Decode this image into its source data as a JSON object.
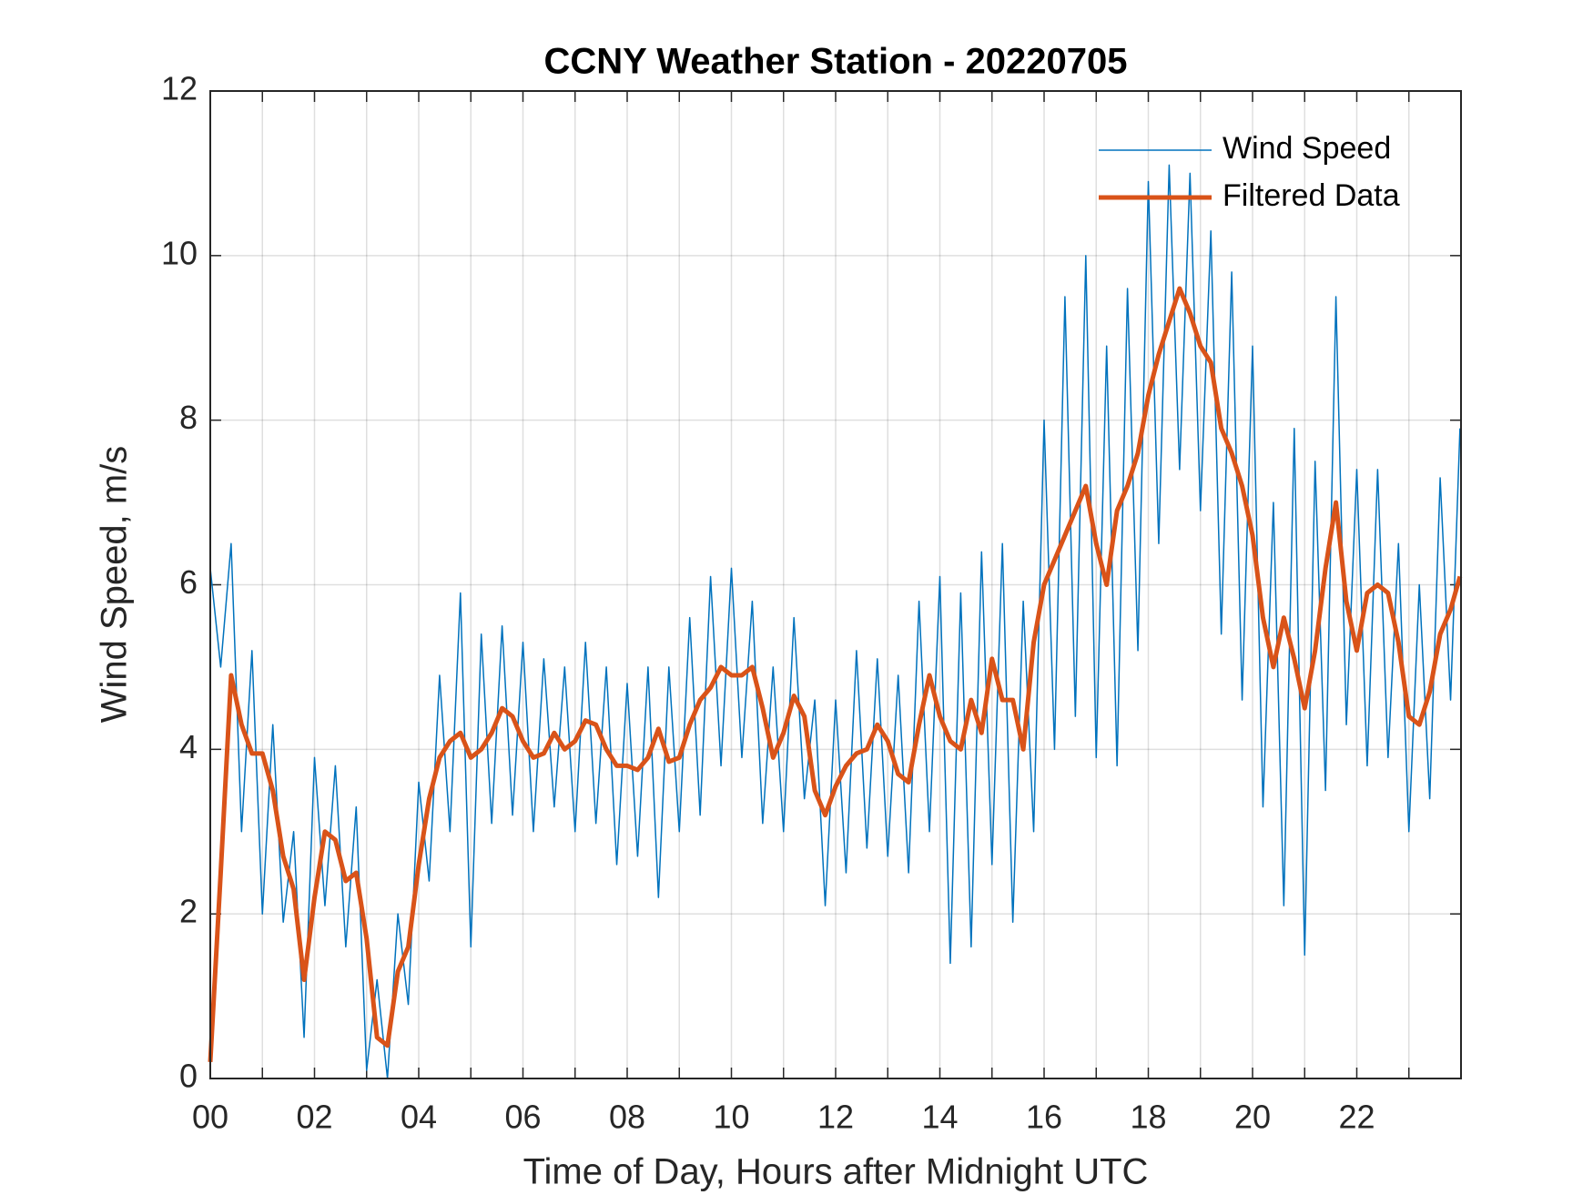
{
  "chart_data": {
    "type": "line",
    "title": "CCNY Weather Station - 20220705",
    "xlabel": "Time of Day, Hours after Midnight UTC",
    "ylabel": "Wind Speed, m/s",
    "x": [
      0,
      0.2,
      0.4,
      0.6,
      0.8,
      1.0,
      1.2,
      1.4,
      1.6,
      1.8,
      2.0,
      2.2,
      2.4,
      2.6,
      2.8,
      3.0,
      3.2,
      3.4,
      3.6,
      3.8,
      4.0,
      4.2,
      4.4,
      4.6,
      4.8,
      5.0,
      5.2,
      5.4,
      5.6,
      5.8,
      6.0,
      6.2,
      6.4,
      6.6,
      6.8,
      7.0,
      7.2,
      7.4,
      7.6,
      7.8,
      8.0,
      8.2,
      8.4,
      8.6,
      8.8,
      9.0,
      9.2,
      9.4,
      9.6,
      9.8,
      10.0,
      10.2,
      10.4,
      10.6,
      10.8,
      11.0,
      11.2,
      11.4,
      11.6,
      11.8,
      12.0,
      12.2,
      12.4,
      12.6,
      12.8,
      13.0,
      13.2,
      13.4,
      13.6,
      13.8,
      14.0,
      14.2,
      14.4,
      14.6,
      14.8,
      15.0,
      15.2,
      15.4,
      15.6,
      15.8,
      16.0,
      16.2,
      16.4,
      16.6,
      16.8,
      17.0,
      17.2,
      17.4,
      17.6,
      17.8,
      18.0,
      18.2,
      18.4,
      18.6,
      18.8,
      19.0,
      19.2,
      19.4,
      19.6,
      19.8,
      20.0,
      20.2,
      20.4,
      20.6,
      20.8,
      21.0,
      21.2,
      21.4,
      21.6,
      21.8,
      22.0,
      22.2,
      22.4,
      22.6,
      22.8,
      23.0,
      23.2,
      23.4,
      23.6,
      23.8,
      23.98
    ],
    "series": [
      {
        "name": "Wind Speed",
        "color": "#0072BD",
        "width": 1.5,
        "values": [
          6.2,
          5.0,
          6.5,
          3.0,
          5.2,
          2.0,
          4.3,
          1.9,
          3.0,
          0.5,
          3.9,
          2.1,
          3.8,
          1.6,
          3.3,
          0.1,
          1.2,
          0.0,
          2.0,
          0.9,
          3.6,
          2.4,
          4.9,
          3.0,
          5.9,
          1.6,
          5.4,
          3.1,
          5.5,
          3.2,
          5.3,
          3.0,
          5.1,
          3.3,
          5.0,
          3.0,
          5.3,
          3.1,
          5.0,
          2.6,
          4.8,
          2.7,
          5.0,
          2.2,
          5.0,
          3.0,
          5.6,
          3.2,
          6.1,
          3.8,
          6.2,
          3.9,
          5.8,
          3.1,
          5.0,
          3.0,
          5.6,
          3.4,
          4.6,
          2.1,
          4.6,
          2.5,
          5.2,
          2.8,
          5.1,
          2.7,
          4.9,
          2.5,
          5.8,
          3.0,
          6.1,
          1.4,
          5.9,
          1.6,
          6.4,
          2.6,
          6.5,
          1.9,
          5.8,
          3.0,
          8.0,
          4.0,
          9.5,
          4.4,
          10.0,
          3.9,
          8.9,
          3.8,
          9.6,
          5.2,
          10.9,
          6.5,
          11.1,
          7.4,
          11.0,
          6.9,
          10.3,
          5.4,
          9.8,
          4.6,
          8.9,
          3.3,
          7.0,
          2.1,
          7.9,
          1.5,
          7.5,
          3.5,
          9.5,
          4.3,
          7.4,
          3.8,
          7.4,
          3.9,
          6.5,
          3.0,
          6.0,
          3.4,
          7.3,
          4.6,
          7.9
        ]
      },
      {
        "name": "Filtered Data",
        "color": "#D95319",
        "width": 5,
        "values": [
          0.2,
          2.5,
          4.9,
          4.3,
          3.95,
          3.95,
          3.5,
          2.7,
          2.3,
          1.2,
          2.2,
          3.0,
          2.9,
          2.4,
          2.5,
          1.7,
          0.5,
          0.4,
          1.3,
          1.6,
          2.6,
          3.4,
          3.9,
          4.1,
          4.2,
          3.9,
          4.0,
          4.2,
          4.5,
          4.4,
          4.1,
          3.9,
          3.95,
          4.2,
          4.0,
          4.1,
          4.35,
          4.3,
          4.0,
          3.8,
          3.8,
          3.75,
          3.9,
          4.25,
          3.85,
          3.9,
          4.3,
          4.6,
          4.75,
          5.0,
          4.9,
          4.9,
          5.0,
          4.5,
          3.9,
          4.2,
          4.65,
          4.4,
          3.5,
          3.2,
          3.55,
          3.8,
          3.95,
          4.0,
          4.3,
          4.1,
          3.7,
          3.6,
          4.3,
          4.9,
          4.4,
          4.1,
          4.0,
          4.6,
          4.2,
          5.1,
          4.6,
          4.6,
          4.0,
          5.3,
          6.0,
          6.3,
          6.6,
          6.9,
          7.2,
          6.5,
          6.0,
          6.9,
          7.2,
          7.6,
          8.3,
          8.8,
          9.2,
          9.6,
          9.3,
          8.9,
          8.7,
          7.9,
          7.6,
          7.2,
          6.6,
          5.6,
          5.0,
          5.6,
          5.1,
          4.5,
          5.2,
          6.2,
          7.0,
          5.8,
          5.2,
          5.9,
          6.0,
          5.9,
          5.3,
          4.4,
          4.3,
          4.7,
          5.4,
          5.7,
          6.1
        ]
      }
    ],
    "xlim": [
      0,
      24
    ],
    "xticks": [
      {
        "value": 0,
        "label": "00"
      },
      {
        "value": 2,
        "label": "02"
      },
      {
        "value": 4,
        "label": "04"
      },
      {
        "value": 6,
        "label": "06"
      },
      {
        "value": 8,
        "label": "08"
      },
      {
        "value": 10,
        "label": "10"
      },
      {
        "value": 12,
        "label": "12"
      },
      {
        "value": 14,
        "label": "14"
      },
      {
        "value": 16,
        "label": "16"
      },
      {
        "value": 18,
        "label": "18"
      },
      {
        "value": 20,
        "label": "20"
      },
      {
        "value": 22,
        "label": "22"
      }
    ],
    "xminorticks": [
      1,
      3,
      5,
      7,
      9,
      11,
      13,
      15,
      17,
      19,
      21,
      23
    ],
    "ylim": [
      0,
      12
    ],
    "yticks": [
      0,
      2,
      4,
      6,
      8,
      10,
      12
    ],
    "grid": true,
    "legend": "top-right"
  }
}
